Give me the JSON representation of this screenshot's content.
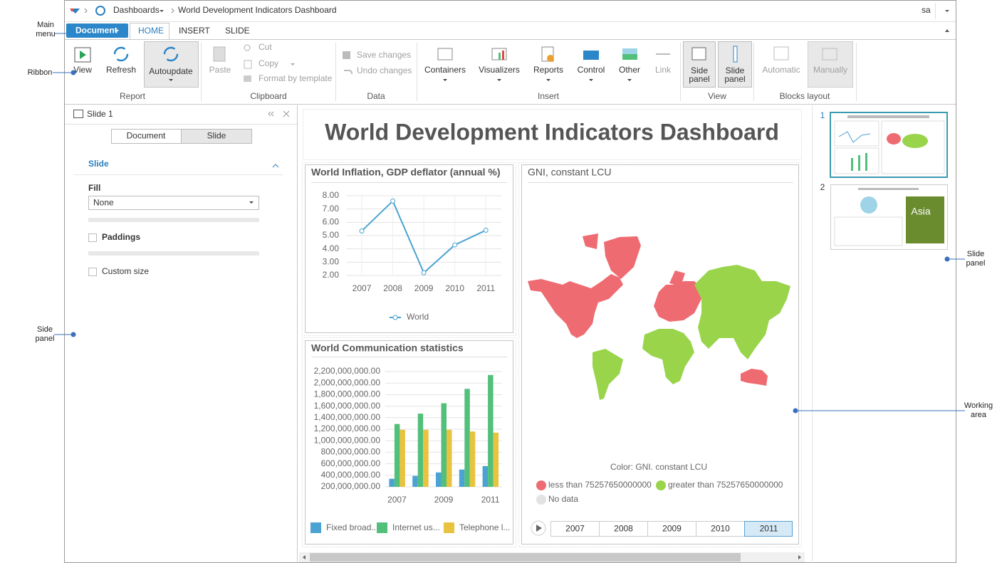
{
  "annotations": {
    "main_menu": "Main menu",
    "ribbon": "Ribbon",
    "side_panel": "Side panel",
    "slide_panel": "Slide panel",
    "working_area": "Working area"
  },
  "header": {
    "breadcrumb": [
      "Dashboards",
      "World Development Indicators Dashboard"
    ],
    "user": "sa"
  },
  "menu": {
    "document": "Document",
    "tabs": [
      "HOME",
      "INSERT",
      "SLIDE"
    ]
  },
  "ribbon": {
    "groups": [
      {
        "label": "Report",
        "items": [
          "View",
          "Refresh",
          "Autoupdate"
        ]
      },
      {
        "label": "Clipboard",
        "items": [
          "Paste",
          "Cut",
          "Copy",
          "Format by template"
        ]
      },
      {
        "label": "Data",
        "items": [
          "Save changes",
          "Undo changes"
        ]
      },
      {
        "label": "Insert",
        "items": [
          "Containers",
          "Visualizers",
          "Reports",
          "Control",
          "Other",
          "Link"
        ]
      },
      {
        "label": "View",
        "items": [
          "Side panel",
          "Slide panel"
        ]
      },
      {
        "label": "Blocks layout",
        "items": [
          "Automatic",
          "Manually"
        ]
      }
    ]
  },
  "side": {
    "title": "Slide 1",
    "tabs": [
      "Document",
      "Slide"
    ],
    "section": "Slide",
    "fill_label": "Fill",
    "fill_value": "None",
    "paddings": "Paddings",
    "custom_size": "Custom size"
  },
  "dashboard": {
    "title": "World Development Indicators Dashboard"
  },
  "chart_data": [
    {
      "type": "line",
      "title": "World Inflation, GDP deflator (annual %)",
      "categories": [
        "2007",
        "2008",
        "2009",
        "2010",
        "2011"
      ],
      "series": [
        {
          "name": "World",
          "color": "#4aa3d0",
          "values": [
            5.35,
            7.6,
            2.2,
            4.3,
            5.4
          ]
        }
      ],
      "ylim": [
        2,
        8
      ],
      "yticks": [
        {
          "value": 2,
          "label": "2.00"
        },
        {
          "value": 3,
          "label": "3.00"
        },
        {
          "value": 4,
          "label": "4.00"
        },
        {
          "value": 5,
          "label": "5.00"
        },
        {
          "value": 6,
          "label": "6.00"
        },
        {
          "value": 7,
          "label": "7.00"
        },
        {
          "value": 8,
          "label": "8.00"
        }
      ],
      "grid": true
    },
    {
      "type": "bar",
      "title": "World Communication statistics",
      "categories": [
        "2007",
        null,
        "2009",
        null,
        "2011"
      ],
      "series": [
        {
          "name": "Fixed broad...",
          "color": "#4ba3d3",
          "values": [
            340000000,
            390000000,
            450000000,
            500000000,
            560000000
          ]
        },
        {
          "name": "Internet us...",
          "color": "#52c07a",
          "values": [
            1290000000,
            1470000000,
            1650000000,
            1900000000,
            2140000000
          ]
        },
        {
          "name": "Telephone l...",
          "color": "#e8c340",
          "values": [
            1190000000,
            1190000000,
            1190000000,
            1160000000,
            1140000000
          ]
        }
      ],
      "ylim": [
        200000000,
        2200000000
      ],
      "yticks": [
        {
          "value": 200000000,
          "label": "200,000,000.00"
        },
        {
          "value": 400000000,
          "label": "400,000,000.00"
        },
        {
          "value": 600000000,
          "label": "600,000,000.00"
        },
        {
          "value": 800000000,
          "label": "800,000,000.00"
        },
        {
          "value": 1000000000,
          "label": "1,000,000,000.00"
        },
        {
          "value": 1200000000,
          "label": "1,200,000,000.00"
        },
        {
          "value": 1400000000,
          "label": "1,400,000,000.00"
        },
        {
          "value": 1600000000,
          "label": "1,600,000,000.00"
        },
        {
          "value": 1800000000,
          "label": "1,800,000,000.00"
        },
        {
          "value": 2000000000,
          "label": "2,000,000,000.00"
        },
        {
          "value": 2200000000,
          "label": "2,200,000,000.00"
        }
      ],
      "grid": true
    }
  ],
  "map": {
    "title": "GNI, constant LCU",
    "legend_title": "Color: GNI. constant LCU",
    "legend": [
      {
        "label": "less than 75257650000000",
        "color": "#ef6b72"
      },
      {
        "label": "greater than 75257650000000",
        "color": "#99d44b"
      },
      {
        "label": "No data",
        "color": "#e3e3e3"
      }
    ],
    "years": [
      "2007",
      "2008",
      "2009",
      "2010",
      "2011"
    ],
    "selected_year": "2011"
  },
  "slides": [
    {
      "number": "1"
    },
    {
      "number": "2",
      "thumb_text": "Asia"
    }
  ]
}
